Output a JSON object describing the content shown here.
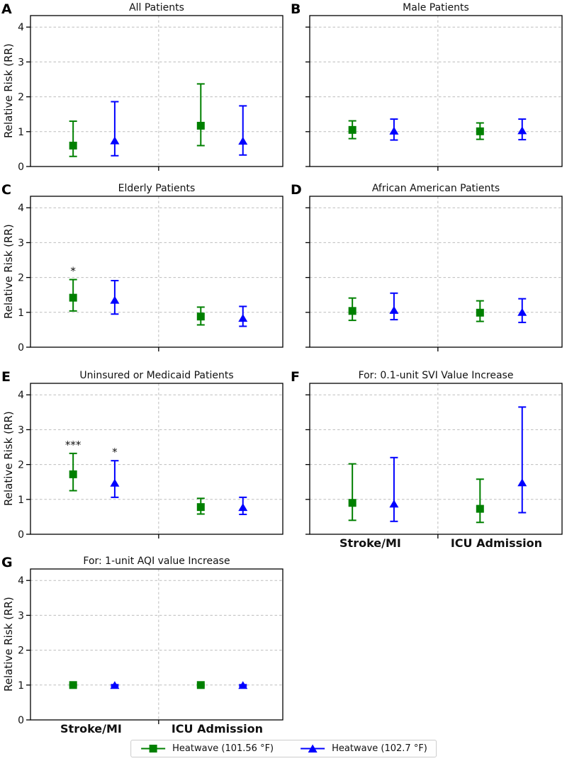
{
  "chart_data": {
    "type": "errorbar",
    "ylabel": "Relative Risk (RR)",
    "ylim": [
      0,
      4.33
    ],
    "yticks": [
      "0",
      "1",
      "2",
      "3",
      "4"
    ],
    "grid": "dashed horizontal at 1-4 plus dashed vertical divider between categories",
    "categories": [
      "Stroke/MI",
      "ICU Admission"
    ],
    "legend_position": "bottom-center",
    "legend": [
      {
        "label": "Heatwave (101.56 °F)",
        "color": "#008000",
        "marker": "square"
      },
      {
        "label": "Heatwave (102.7 °F)",
        "color": "#0000ff",
        "marker": "triangle"
      }
    ],
    "panels": [
      {
        "letter": "A",
        "title": "All Patients",
        "points": [
          {
            "series": 0,
            "category": 0,
            "rr": 0.6,
            "lo": 0.29,
            "hi": 1.3,
            "sig": ""
          },
          {
            "series": 1,
            "category": 0,
            "rr": 0.74,
            "lo": 0.31,
            "hi": 1.86,
            "sig": ""
          },
          {
            "series": 0,
            "category": 1,
            "rr": 1.17,
            "lo": 0.6,
            "hi": 2.37,
            "sig": ""
          },
          {
            "series": 1,
            "category": 1,
            "rr": 0.73,
            "lo": 0.33,
            "hi": 1.74,
            "sig": ""
          }
        ]
      },
      {
        "letter": "B",
        "title": "Male Patients",
        "points": [
          {
            "series": 0,
            "category": 0,
            "rr": 1.05,
            "lo": 0.8,
            "hi": 1.31,
            "sig": ""
          },
          {
            "series": 1,
            "category": 0,
            "rr": 1.02,
            "lo": 0.76,
            "hi": 1.36,
            "sig": ""
          },
          {
            "series": 0,
            "category": 1,
            "rr": 1.01,
            "lo": 0.78,
            "hi": 1.25,
            "sig": ""
          },
          {
            "series": 1,
            "category": 1,
            "rr": 1.03,
            "lo": 0.77,
            "hi": 1.36,
            "sig": ""
          }
        ]
      },
      {
        "letter": "C",
        "title": "Elderly Patients",
        "points": [
          {
            "series": 0,
            "category": 0,
            "rr": 1.42,
            "lo": 1.04,
            "hi": 1.94,
            "sig": "*"
          },
          {
            "series": 1,
            "category": 0,
            "rr": 1.35,
            "lo": 0.95,
            "hi": 1.91,
            "sig": ""
          },
          {
            "series": 0,
            "category": 1,
            "rr": 0.88,
            "lo": 0.64,
            "hi": 1.15,
            "sig": ""
          },
          {
            "series": 1,
            "category": 1,
            "rr": 0.83,
            "lo": 0.6,
            "hi": 1.17,
            "sig": ""
          }
        ]
      },
      {
        "letter": "D",
        "title": "African American Patients",
        "points": [
          {
            "series": 0,
            "category": 0,
            "rr": 1.04,
            "lo": 0.77,
            "hi": 1.41,
            "sig": ""
          },
          {
            "series": 1,
            "category": 0,
            "rr": 1.06,
            "lo": 0.79,
            "hi": 1.55,
            "sig": ""
          },
          {
            "series": 0,
            "category": 1,
            "rr": 0.99,
            "lo": 0.74,
            "hi": 1.33,
            "sig": ""
          },
          {
            "series": 1,
            "category": 1,
            "rr": 1.0,
            "lo": 0.71,
            "hi": 1.39,
            "sig": ""
          }
        ]
      },
      {
        "letter": "E",
        "title": "Uninsured or Medicaid Patients",
        "points": [
          {
            "series": 0,
            "category": 0,
            "rr": 1.72,
            "lo": 1.25,
            "hi": 2.32,
            "sig": "***"
          },
          {
            "series": 1,
            "category": 0,
            "rr": 1.47,
            "lo": 1.06,
            "hi": 2.11,
            "sig": "*"
          },
          {
            "series": 0,
            "category": 1,
            "rr": 0.78,
            "lo": 0.58,
            "hi": 1.03,
            "sig": ""
          },
          {
            "series": 1,
            "category": 1,
            "rr": 0.77,
            "lo": 0.57,
            "hi": 1.06,
            "sig": ""
          }
        ]
      },
      {
        "letter": "F",
        "title": "For: 0.1-unit SVI Value Increase",
        "points": [
          {
            "series": 0,
            "category": 0,
            "rr": 0.9,
            "lo": 0.4,
            "hi": 2.02,
            "sig": ""
          },
          {
            "series": 1,
            "category": 0,
            "rr": 0.87,
            "lo": 0.37,
            "hi": 2.2,
            "sig": ""
          },
          {
            "series": 0,
            "category": 1,
            "rr": 0.73,
            "lo": 0.34,
            "hi": 1.58,
            "sig": ""
          },
          {
            "series": 1,
            "category": 1,
            "rr": 1.48,
            "lo": 0.62,
            "hi": 3.65,
            "sig": ""
          }
        ]
      },
      {
        "letter": "G",
        "title": "For: 1-unit AQI value Increase",
        "points": [
          {
            "series": 0,
            "category": 0,
            "rr": 1.0,
            "lo": 0.98,
            "hi": 1.02,
            "sig": ""
          },
          {
            "series": 1,
            "category": 0,
            "rr": 0.99,
            "lo": 0.97,
            "hi": 1.01,
            "sig": ""
          },
          {
            "series": 0,
            "category": 1,
            "rr": 1.0,
            "lo": 0.98,
            "hi": 1.02,
            "sig": ""
          },
          {
            "series": 1,
            "category": 1,
            "rr": 0.99,
            "lo": 0.97,
            "hi": 1.01,
            "sig": ""
          }
        ]
      }
    ]
  }
}
